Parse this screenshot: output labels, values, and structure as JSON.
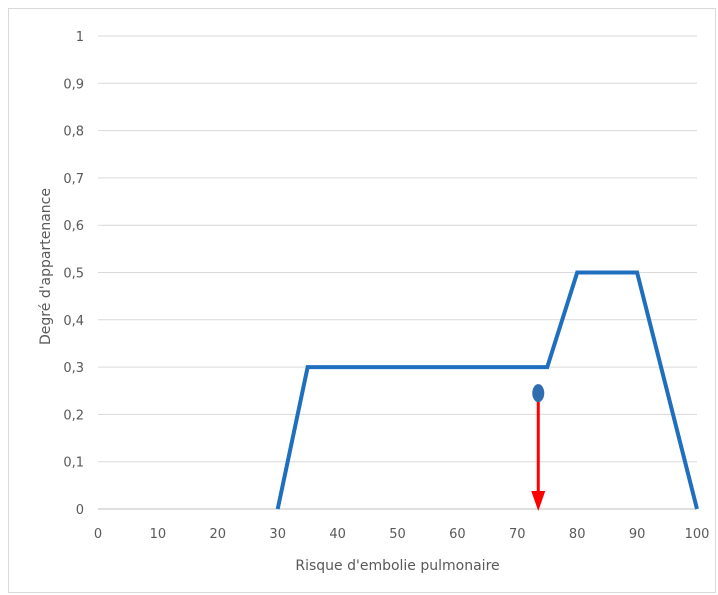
{
  "chart_data": {
    "type": "line",
    "title": "",
    "xlabel": "Risque d'embolie pulmonaire",
    "ylabel": "Degré d'appartenance",
    "xlim": [
      0,
      100
    ],
    "ylim": [
      0,
      1
    ],
    "grid": true,
    "x_ticks": [
      0,
      10,
      20,
      30,
      40,
      50,
      60,
      70,
      80,
      90,
      100
    ],
    "x_tick_labels": [
      "0",
      "10",
      "20",
      "30",
      "40",
      "50",
      "60",
      "70",
      "80",
      "90",
      "100"
    ],
    "y_ticks": [
      0,
      0.1,
      0.2,
      0.3,
      0.4,
      0.5,
      0.6,
      0.7,
      0.8,
      0.9,
      1
    ],
    "y_tick_labels": [
      "0",
      "0,1",
      "0,2",
      "0,3",
      "0,4",
      "0,5",
      "0,6",
      "0,7",
      "0,8",
      "0,9",
      "1"
    ],
    "series": [
      {
        "color": "#1f6fbf",
        "x": [
          30,
          35,
          75,
          80,
          90,
          100
        ],
        "y": [
          0,
          0.3,
          0.3,
          0.5,
          0.5,
          0
        ]
      }
    ],
    "annotations": [
      {
        "type": "point",
        "x": 73.5,
        "y": 0.245,
        "color": "#2e6db0"
      },
      {
        "type": "arrow",
        "x": 73.5,
        "y_from": 0.245,
        "y_to": 0,
        "color": "#ff0000"
      }
    ]
  }
}
